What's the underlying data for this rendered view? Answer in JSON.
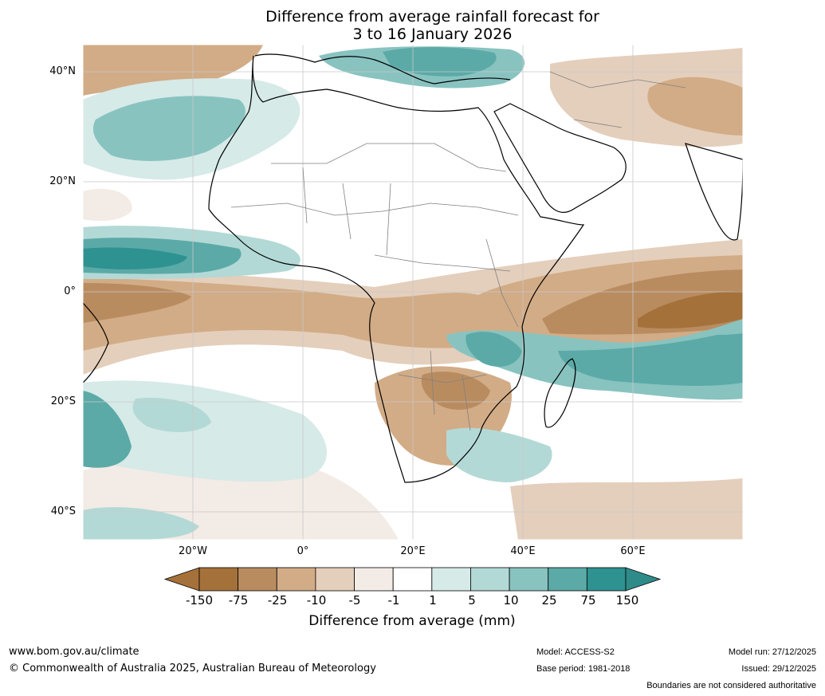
{
  "title": {
    "line1": "Difference from average rainfall forecast for",
    "line2": "3 to 16 January 2026"
  },
  "map": {
    "lat_labels": [
      "40°N",
      "20°N",
      "0°",
      "20°S",
      "40°S"
    ],
    "lon_labels": [
      "20°W",
      "0°",
      "20°E",
      "40°E",
      "60°E"
    ]
  },
  "legend": {
    "title": "Difference from average (mm)",
    "tick_labels": [
      "-150",
      "-75",
      "-25",
      "-10",
      "-5",
      "-1",
      "1",
      "5",
      "10",
      "25",
      "75",
      "150"
    ],
    "colors": [
      "#a5713a",
      "#b98c60",
      "#d2ac86",
      "#e4cfbc",
      "#f3ebe5",
      "#ffffff",
      "#d6eae8",
      "#b3d9d6",
      "#88c3c0",
      "#5baaa7",
      "#2e9290",
      "#2e8b8a"
    ]
  },
  "footer": {
    "website": "www.bom.gov.au/climate",
    "copyright": "© Commonwealth of Australia 2025, Australian Bureau of Meteorology",
    "model": "Model: ACCESS-S2",
    "base_period": "Base period: 1981-2018",
    "model_run": "Model run: 27/12/2025",
    "issued": "Issued: 29/12/2025",
    "disclaimer": "Boundaries are not considered authoritative"
  }
}
